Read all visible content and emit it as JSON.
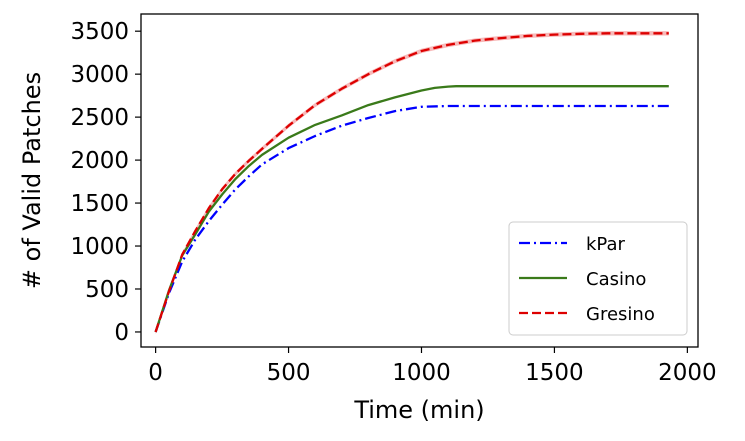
{
  "chart_data": {
    "type": "line",
    "xlabel": "Time (min)",
    "ylabel": "# of Valid Patches",
    "xlim": [
      -55,
      2040
    ],
    "ylim": [
      -175,
      3700
    ],
    "xticks": [
      0,
      500,
      1000,
      1500,
      2000
    ],
    "yticks": [
      0,
      500,
      1000,
      1500,
      2000,
      2500,
      3000,
      3500
    ],
    "grid": false,
    "legend_position": "lower-right",
    "series": [
      {
        "name": "kPar",
        "color": "#0000ff",
        "style": "dash-dot",
        "x": [
          0,
          50,
          100,
          150,
          200,
          250,
          300,
          350,
          400,
          500,
          600,
          700,
          800,
          900,
          1000,
          1100,
          1200,
          1500,
          1930
        ],
        "y": [
          0,
          450,
          820,
          1080,
          1290,
          1480,
          1660,
          1810,
          1950,
          2140,
          2280,
          2400,
          2490,
          2570,
          2620,
          2630,
          2630,
          2630,
          2630
        ]
      },
      {
        "name": "Casino",
        "color": "#3a7a1a",
        "style": "solid",
        "x": [
          0,
          50,
          100,
          150,
          200,
          250,
          300,
          350,
          400,
          500,
          600,
          700,
          800,
          900,
          1000,
          1050,
          1100,
          1130,
          1200,
          1500,
          1930
        ],
        "y": [
          0,
          480,
          890,
          1140,
          1400,
          1600,
          1780,
          1930,
          2060,
          2260,
          2410,
          2520,
          2640,
          2730,
          2810,
          2840,
          2855,
          2860,
          2860,
          2860,
          2860
        ]
      },
      {
        "name": "Gresino",
        "color": "#dd0000",
        "style": "dashed",
        "band_color": "#f5a8a8",
        "x": [
          0,
          50,
          100,
          150,
          200,
          250,
          300,
          350,
          400,
          500,
          600,
          700,
          800,
          900,
          1000,
          1100,
          1200,
          1300,
          1400,
          1500,
          1600,
          1700,
          1930
        ],
        "y": [
          0,
          470,
          900,
          1180,
          1440,
          1660,
          1840,
          1990,
          2130,
          2400,
          2640,
          2830,
          3000,
          3150,
          3270,
          3340,
          3390,
          3420,
          3445,
          3460,
          3470,
          3475,
          3475
        ]
      }
    ]
  }
}
